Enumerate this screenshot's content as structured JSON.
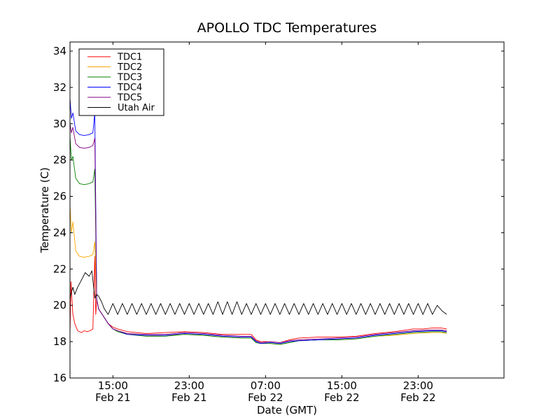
{
  "chart_data": {
    "type": "line",
    "title": "APOLLO TDC Temperatures",
    "xlabel": "Date (GMT)",
    "ylabel": "Temperature (C)",
    "x_unit": "hours since Feb 21 10:30 GMT",
    "xlim": [
      0,
      45.5
    ],
    "ylim": [
      16,
      34.5
    ],
    "yticks": [
      16,
      18,
      20,
      22,
      24,
      26,
      28,
      30,
      32,
      34
    ],
    "xticks": [
      {
        "x": 4.5,
        "time": "15:00",
        "date": "Feb 21"
      },
      {
        "x": 12.5,
        "time": "23:00",
        "date": "Feb 21"
      },
      {
        "x": 20.5,
        "time": "07:00",
        "date": "Feb 22"
      },
      {
        "x": 28.5,
        "time": "15:00",
        "date": "Feb 22"
      },
      {
        "x": 36.5,
        "time": "23:00",
        "date": "Feb 22"
      }
    ],
    "legend_position": "top-left",
    "series": [
      {
        "name": "TDC1",
        "color": "#ff0000",
        "x": [
          0,
          0.1,
          0.3,
          0.5,
          0.8,
          1.2,
          1.5,
          1.8,
          2.1,
          2.4,
          2.6,
          2.7,
          2.8,
          3.0,
          3.5,
          4.0,
          4.5,
          5.0,
          6,
          8,
          10,
          12,
          14,
          16,
          18,
          19,
          19.5,
          20,
          21,
          22,
          23,
          24,
          26,
          28,
          30,
          32,
          34,
          36,
          37,
          38,
          38.9,
          39.5
        ],
        "values": [
          18.4,
          21.3,
          19.5,
          19.0,
          18.6,
          18.5,
          18.6,
          18.55,
          18.6,
          18.7,
          22.7,
          19.5,
          20.3,
          19.8,
          19.4,
          19.0,
          18.8,
          18.7,
          18.55,
          18.45,
          18.5,
          18.55,
          18.5,
          18.4,
          18.4,
          18.4,
          18.1,
          18.0,
          18.0,
          17.95,
          18.1,
          18.2,
          18.25,
          18.25,
          18.3,
          18.45,
          18.55,
          18.7,
          18.7,
          18.75,
          18.75,
          18.7
        ]
      },
      {
        "name": "TDC2",
        "color": "#ffa500",
        "x": [
          0,
          0.15,
          0.3,
          0.6,
          1.0,
          1.5,
          2.0,
          2.4,
          2.6,
          2.8,
          3.0,
          3.5,
          4.0,
          4.5,
          5.0,
          6,
          8,
          10,
          12,
          14,
          16,
          18,
          19,
          19.5,
          20,
          21,
          22,
          23,
          24,
          26,
          28,
          30,
          32,
          34,
          36,
          38,
          38.9,
          39.5
        ],
        "values": [
          25.5,
          24.0,
          24.6,
          23.0,
          22.7,
          22.65,
          22.7,
          22.8,
          23.5,
          20.3,
          19.8,
          19.4,
          19.0,
          18.7,
          18.6,
          18.45,
          18.3,
          18.35,
          18.4,
          18.35,
          18.25,
          18.2,
          18.2,
          17.95,
          17.9,
          17.9,
          17.85,
          17.95,
          18.05,
          18.1,
          18.1,
          18.15,
          18.3,
          18.35,
          18.45,
          18.5,
          18.5,
          18.45
        ]
      },
      {
        "name": "TDC3",
        "color": "#008000",
        "x": [
          0,
          0.15,
          0.3,
          0.6,
          1.0,
          1.5,
          2.0,
          2.4,
          2.6,
          2.8,
          3.0,
          3.5,
          4.0,
          4.5,
          5.0,
          6,
          8,
          10,
          12,
          14,
          16,
          18,
          19,
          19.5,
          20,
          21,
          22,
          23,
          24,
          26,
          28,
          30,
          32,
          34,
          36,
          38,
          38.9,
          39.5
        ],
        "values": [
          29.3,
          28.0,
          28.2,
          27.0,
          26.7,
          26.65,
          26.7,
          26.8,
          27.5,
          20.3,
          19.8,
          19.4,
          19.0,
          18.7,
          18.55,
          18.4,
          18.3,
          18.3,
          18.4,
          18.35,
          18.25,
          18.2,
          18.2,
          17.95,
          17.9,
          17.9,
          17.85,
          17.95,
          18.05,
          18.1,
          18.1,
          18.15,
          18.3,
          18.4,
          18.5,
          18.55,
          18.55,
          18.5
        ]
      },
      {
        "name": "TDC4",
        "color": "#0000ff",
        "x": [
          0,
          0.15,
          0.3,
          0.6,
          1.0,
          1.5,
          2.0,
          2.4,
          2.6,
          2.8,
          3.0,
          3.5,
          4.0,
          4.5,
          5.0,
          6,
          8,
          10,
          12,
          14,
          16,
          18,
          19,
          19.5,
          20,
          21,
          22,
          23,
          24,
          26,
          28,
          30,
          32,
          34,
          36,
          38,
          38.9,
          39.5
        ],
        "values": [
          31.4,
          30.3,
          30.6,
          29.6,
          29.4,
          29.35,
          29.4,
          29.5,
          30.6,
          20.3,
          19.8,
          19.4,
          19.0,
          18.7,
          18.6,
          18.4,
          18.35,
          18.35,
          18.45,
          18.4,
          18.3,
          18.25,
          18.25,
          18.0,
          17.9,
          17.95,
          17.9,
          18.0,
          18.05,
          18.1,
          18.15,
          18.2,
          18.35,
          18.45,
          18.55,
          18.6,
          18.6,
          18.55
        ]
      },
      {
        "name": "TDC5",
        "color": "#800080",
        "x": [
          0,
          0.15,
          0.3,
          0.6,
          1.0,
          1.5,
          2.0,
          2.4,
          2.6,
          2.8,
          3.0,
          3.5,
          4.0,
          4.5,
          5.0,
          6,
          8,
          10,
          12,
          14,
          16,
          18,
          19,
          19.5,
          20,
          21,
          22,
          23,
          24,
          26,
          28,
          30,
          32,
          34,
          36,
          38,
          38.9,
          39.5
        ],
        "values": [
          30.0,
          29.5,
          29.8,
          28.9,
          28.7,
          28.65,
          28.7,
          28.8,
          29.2,
          20.3,
          19.8,
          19.4,
          19.0,
          18.7,
          18.6,
          18.45,
          18.4,
          18.4,
          18.5,
          18.45,
          18.35,
          18.3,
          18.3,
          18.05,
          17.95,
          18.0,
          17.95,
          18.05,
          18.1,
          18.15,
          18.2,
          18.25,
          18.4,
          18.5,
          18.6,
          18.65,
          18.65,
          18.6
        ]
      },
      {
        "name": "Utah Air",
        "color": "#000000",
        "x": [
          0,
          0.3,
          0.5,
          0.8,
          1.2,
          1.6,
          2.0,
          2.3,
          2.6,
          2.8,
          3.0,
          3.3,
          3.6,
          4.0,
          4.5,
          5.0,
          5.5,
          6,
          6.5,
          7,
          7.5,
          8,
          8.5,
          9,
          9.5,
          10,
          10.5,
          11,
          11.5,
          12,
          12.5,
          13,
          13.5,
          14,
          14.5,
          15,
          15.5,
          16,
          16.5,
          17,
          17.5,
          18,
          18.5,
          19,
          19.5,
          20,
          20.5,
          21,
          21.5,
          22,
          22.5,
          23,
          23.5,
          24,
          24.5,
          25,
          25.5,
          26,
          26.5,
          27,
          27.5,
          28,
          28.5,
          29,
          29.5,
          30,
          30.5,
          31,
          31.5,
          32,
          32.5,
          33,
          33.5,
          34,
          34.5,
          35,
          35.5,
          36,
          36.5,
          37,
          37.5,
          38,
          38.5,
          39,
          39.5
        ],
        "values": [
          20.4,
          21.0,
          20.6,
          21.0,
          21.4,
          21.8,
          21.6,
          21.9,
          20.4,
          20.6,
          20.5,
          20.2,
          19.8,
          19.5,
          20.1,
          19.5,
          20.1,
          19.5,
          20.1,
          19.5,
          20.1,
          19.5,
          20.1,
          19.5,
          20.1,
          19.5,
          20.1,
          19.5,
          20.1,
          19.5,
          20.1,
          19.5,
          20.1,
          19.5,
          20.1,
          19.5,
          20.2,
          19.5,
          20.2,
          19.5,
          20.2,
          19.5,
          20.1,
          19.5,
          20.1,
          19.5,
          20.1,
          19.5,
          20.1,
          19.5,
          20.1,
          19.5,
          20.1,
          19.5,
          20.1,
          19.5,
          20.1,
          19.5,
          20.1,
          19.5,
          20.1,
          19.5,
          20.1,
          19.5,
          20.1,
          19.5,
          20.1,
          19.5,
          20.1,
          19.5,
          20.1,
          19.5,
          20.1,
          19.5,
          20.1,
          19.5,
          20.1,
          19.5,
          20.1,
          19.5,
          20.1,
          19.5,
          20.0,
          19.7,
          19.5
        ]
      }
    ]
  }
}
